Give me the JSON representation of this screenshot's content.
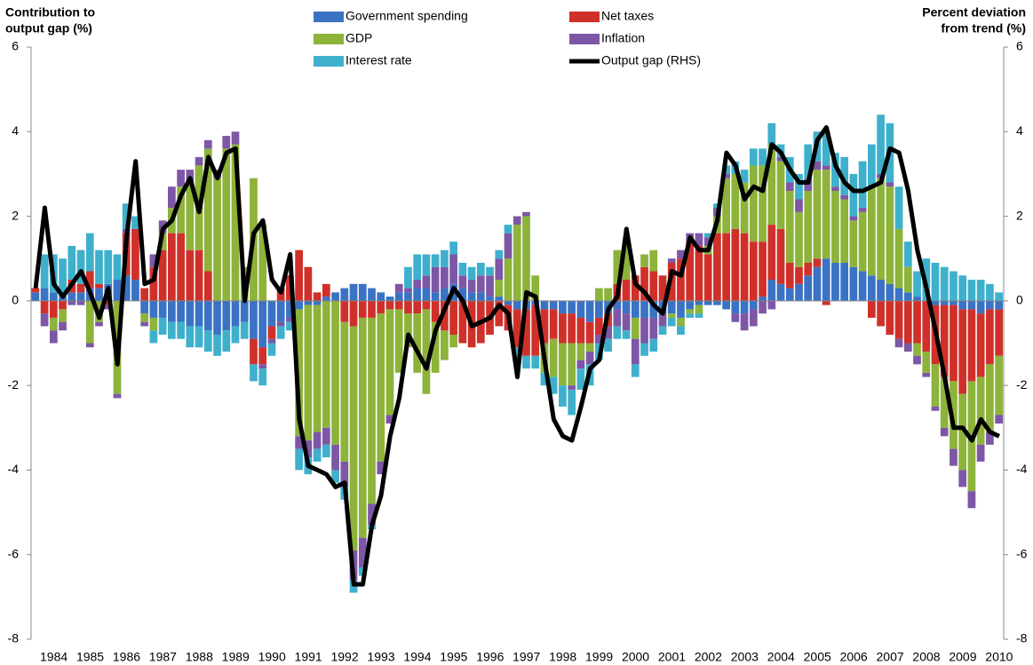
{
  "chart_data": {
    "type": "stacked-bar-line",
    "y_label": [
      "Contribution to",
      "output gap (%)"
    ],
    "y2_label": [
      "Percent deviation",
      "from trend (%)"
    ],
    "categories": [
      null,
      null,
      "1984",
      null,
      null,
      null,
      "1985",
      null,
      null,
      null,
      "1986",
      null,
      null,
      null,
      "1987",
      null,
      null,
      null,
      "1988",
      null,
      null,
      null,
      "1989",
      null,
      null,
      null,
      "1990",
      null,
      null,
      null,
      "1991",
      null,
      null,
      null,
      "1992",
      null,
      null,
      null,
      "1993",
      null,
      null,
      null,
      "1994",
      null,
      null,
      null,
      "1995",
      null,
      null,
      null,
      "1996",
      null,
      null,
      null,
      "1997",
      null,
      null,
      null,
      "1998",
      null,
      null,
      null,
      "1999",
      null,
      null,
      null,
      "2000",
      null,
      null,
      null,
      "2001",
      null,
      null,
      null,
      "2002",
      null,
      null,
      null,
      "2003",
      null,
      null,
      null,
      "2004",
      null,
      null,
      null,
      "2005",
      null,
      null,
      null,
      "2006",
      null,
      null,
      null,
      "2007",
      null,
      null,
      null,
      "2008",
      null,
      null,
      null,
      "2009",
      null,
      null,
      null,
      "2010"
    ],
    "ylim": [
      -8,
      6
    ],
    "yticks": [
      -8,
      -6,
      -4,
      -2,
      0,
      2,
      4,
      6
    ],
    "y2lim": [
      -8,
      6
    ],
    "y2ticks": [
      -8,
      -6,
      -4,
      -2,
      0,
      2,
      4,
      6
    ],
    "series": [
      {
        "name": "Government spending",
        "color": "#3a72c4",
        "values": [
          0.2,
          0.3,
          0.2,
          0.1,
          0.2,
          0.2,
          0.3,
          0.3,
          0.4,
          0.5,
          0.6,
          0.5,
          -0.3,
          -0.4,
          -0.4,
          -0.5,
          -0.5,
          -0.6,
          -0.6,
          -0.7,
          -0.8,
          -0.7,
          -0.6,
          -0.5,
          -0.9,
          -1.1,
          -0.6,
          -0.5,
          -0.4,
          -0.2,
          -0.1,
          -0.1,
          0.1,
          0.2,
          0.3,
          0.4,
          0.4,
          0.3,
          0.2,
          0.1,
          0.2,
          0.2,
          0.3,
          0.3,
          0.2,
          0.3,
          0.4,
          0.3,
          0.2,
          0.2,
          0.1,
          0.1,
          -0.1,
          -0.2,
          -0.2,
          -0.1,
          -0.2,
          -0.2,
          -0.3,
          -0.3,
          -0.4,
          -0.5,
          -0.4,
          -0.3,
          -0.2,
          -0.3,
          -0.4,
          -0.4,
          -0.4,
          -0.3,
          -0.3,
          -0.4,
          -0.2,
          -0.1,
          -0.1,
          -0.1,
          -0.2,
          -0.3,
          -0.3,
          -0.2,
          0.1,
          0.5,
          0.4,
          0.3,
          0.4,
          0.6,
          0.8,
          1.0,
          0.9,
          0.9,
          0.8,
          0.7,
          0.6,
          0.5,
          0.4,
          0.3,
          0.2,
          0.1,
          0.0,
          -0.1,
          -0.1,
          -0.1,
          -0.2,
          -0.2,
          -0.3,
          -0.2,
          -0.2
        ]
      },
      {
        "name": "Net taxes",
        "color": "#d0302a",
        "values": [
          0.1,
          -0.3,
          -0.4,
          -0.2,
          0.3,
          0.2,
          0.4,
          0.1,
          -0.1,
          0.0,
          1.0,
          1.2,
          0.3,
          0.8,
          1.2,
          1.6,
          1.6,
          1.2,
          1.2,
          0.7,
          0.0,
          0.0,
          0.0,
          0.0,
          -0.6,
          -0.4,
          -0.3,
          0.3,
          0.6,
          1.2,
          0.8,
          0.2,
          0.3,
          0.0,
          -0.5,
          -0.6,
          -0.4,
          -0.4,
          -0.3,
          -0.2,
          -0.2,
          -0.3,
          -0.3,
          -0.2,
          -0.5,
          -0.7,
          -0.8,
          -1.0,
          -1.1,
          -1.0,
          -0.8,
          -0.6,
          -0.6,
          -0.9,
          -1.1,
          -1.2,
          -0.8,
          -0.7,
          -0.7,
          -0.7,
          -0.6,
          -0.5,
          -0.4,
          -0.3,
          0.4,
          0.5,
          0.6,
          0.8,
          0.7,
          0.6,
          0.9,
          1.0,
          1.4,
          1.3,
          1.1,
          1.6,
          1.6,
          1.7,
          1.6,
          1.4,
          1.3,
          1.3,
          1.3,
          0.6,
          0.4,
          0.3,
          0.2,
          -0.1,
          0.0,
          0.0,
          0.0,
          0.0,
          -0.4,
          -0.6,
          -0.8,
          -0.9,
          -1.0,
          -1.0,
          -1.2,
          -1.4,
          -1.7,
          -1.8,
          -2.0,
          -1.7,
          -1.5,
          -1.3,
          -1.1
        ]
      },
      {
        "name": "GDP",
        "color": "#8db33a",
        "values": [
          0.0,
          0.0,
          -0.3,
          -0.3,
          0.0,
          0.0,
          -1.0,
          -0.5,
          0.0,
          -2.2,
          0.0,
          0.0,
          -0.2,
          -0.3,
          0.4,
          0.6,
          1.1,
          1.6,
          2.0,
          2.9,
          2.9,
          3.6,
          3.7,
          0.8,
          2.9,
          1.8,
          0.0,
          0.0,
          0.0,
          -3.0,
          -3.2,
          -3.0,
          -3.0,
          -3.4,
          -3.3,
          -5.3,
          -5.2,
          -4.4,
          -3.5,
          -2.5,
          -1.5,
          -0.8,
          -1.4,
          -2.0,
          -1.2,
          -0.7,
          -0.3,
          0.0,
          0.0,
          0.0,
          0.0,
          0.4,
          1.0,
          1.8,
          2.0,
          0.6,
          -0.7,
          -0.9,
          -1.0,
          -1.0,
          -0.4,
          -0.2,
          0.3,
          0.3,
          0.8,
          0.9,
          -0.5,
          0.3,
          0.5,
          0.0,
          -0.1,
          -0.2,
          -0.1,
          -0.2,
          0.2,
          0.4,
          1.3,
          1.3,
          1.2,
          1.8,
          1.8,
          1.9,
          1.6,
          1.7,
          1.3,
          1.7,
          2.1,
          2.1,
          1.7,
          1.5,
          1.1,
          1.4,
          2.1,
          2.4,
          2.3,
          1.4,
          0.6,
          -0.3,
          -0.5,
          -1.0,
          -1.2,
          -1.6,
          -1.8,
          -2.6,
          -1.6,
          -1.6,
          -1.4
        ]
      },
      {
        "name": "Inflation",
        "color": "#7d57a6",
        "values": [
          0.0,
          -0.3,
          -0.3,
          -0.2,
          -0.1,
          -0.1,
          -0.1,
          -0.1,
          -0.1,
          -0.1,
          0.1,
          0.0,
          -0.1,
          0.3,
          0.3,
          0.5,
          0.4,
          0.3,
          0.2,
          0.2,
          0.2,
          0.3,
          0.3,
          0.0,
          0.0,
          -0.1,
          -0.1,
          -0.1,
          -0.1,
          -0.3,
          -0.4,
          -0.4,
          -0.4,
          -0.6,
          -0.6,
          -0.7,
          -0.7,
          -0.5,
          -0.3,
          -0.2,
          0.2,
          0.1,
          0.2,
          0.3,
          0.6,
          0.5,
          0.7,
          0.3,
          0.3,
          0.4,
          0.5,
          0.5,
          0.6,
          0.2,
          0.1,
          0.0,
          0.0,
          0.0,
          0.0,
          -0.1,
          -0.2,
          -0.3,
          -0.2,
          -0.3,
          -0.4,
          -0.4,
          -0.6,
          -0.6,
          -0.5,
          -0.3,
          0.1,
          0.2,
          0.2,
          0.3,
          0.2,
          0.2,
          0.1,
          -0.2,
          -0.4,
          -0.4,
          -0.3,
          -0.2,
          0.1,
          0.2,
          0.3,
          0.3,
          0.2,
          0.1,
          0.1,
          0.1,
          0.1,
          0.1,
          0.0,
          0.1,
          0.1,
          -0.2,
          -0.2,
          -0.2,
          -0.1,
          -0.1,
          -0.2,
          -0.4,
          -0.4,
          -0.4,
          -0.4,
          -0.3,
          -0.2
        ]
      },
      {
        "name": "Interest rate",
        "color": "#3fb0cc",
        "values": [
          0.0,
          0.8,
          0.9,
          0.9,
          0.8,
          0.8,
          0.9,
          0.8,
          0.8,
          0.6,
          0.6,
          0.3,
          0.0,
          -0.3,
          -0.4,
          -0.4,
          -0.4,
          -0.5,
          -0.5,
          -0.5,
          -0.5,
          -0.5,
          -0.4,
          -0.4,
          -0.4,
          -0.4,
          -0.3,
          -0.3,
          -0.2,
          -0.5,
          -0.4,
          -0.3,
          -0.3,
          -0.3,
          -0.3,
          -0.3,
          -0.2,
          -0.1,
          0.0,
          0.0,
          0.0,
          0.5,
          0.6,
          0.5,
          0.3,
          0.4,
          0.3,
          0.3,
          0.3,
          0.3,
          0.2,
          0.2,
          0.2,
          -0.3,
          -0.3,
          -0.3,
          -0.3,
          -0.4,
          -0.5,
          -0.6,
          -0.5,
          -0.5,
          -0.4,
          -0.3,
          -0.3,
          -0.2,
          -0.3,
          -0.3,
          -0.3,
          -0.2,
          -0.2,
          -0.2,
          -0.1,
          -0.1,
          0.1,
          0.1,
          0.2,
          0.3,
          0.3,
          0.4,
          0.4,
          0.5,
          0.3,
          0.6,
          0.6,
          0.8,
          0.7,
          0.8,
          0.8,
          0.9,
          1.0,
          1.1,
          1.0,
          1.4,
          1.4,
          1.0,
          0.6,
          0.6,
          1.0,
          0.9,
          0.8,
          0.7,
          0.6,
          0.5,
          0.5,
          0.4,
          0.2
        ]
      },
      {
        "name": "Output gap (RHS)",
        "color": "#000000",
        "type": "line",
        "axis": "y2",
        "values": [
          0.3,
          2.2,
          0.4,
          0.1,
          0.4,
          0.7,
          0.2,
          -0.4,
          0.3,
          -1.5,
          1.5,
          3.3,
          0.4,
          0.5,
          1.7,
          1.9,
          2.5,
          2.9,
          2.1,
          3.4,
          2.9,
          3.5,
          3.6,
          0.0,
          1.6,
          1.9,
          0.5,
          0.2,
          1.1,
          -2.8,
          -3.9,
          -4.0,
          -4.1,
          -4.4,
          -4.3,
          -6.7,
          -6.7,
          -5.3,
          -4.6,
          -3.2,
          -2.3,
          -0.8,
          -1.2,
          -1.6,
          -0.7,
          -0.2,
          0.3,
          0.0,
          -0.6,
          -0.5,
          -0.4,
          -0.1,
          -0.3,
          -1.8,
          0.2,
          0.1,
          -1.4,
          -2.8,
          -3.2,
          -3.3,
          -2.5,
          -1.6,
          -1.4,
          -0.2,
          0.1,
          1.7,
          0.4,
          0.2,
          -0.1,
          -0.3,
          0.7,
          0.6,
          1.5,
          1.2,
          1.2,
          1.9,
          3.5,
          3.2,
          2.4,
          2.7,
          2.6,
          3.7,
          3.5,
          3.1,
          2.8,
          2.8,
          3.8,
          4.1,
          3.2,
          2.8,
          2.6,
          2.6,
          2.7,
          2.8,
          3.6,
          3.5,
          2.6,
          1.2,
          0.3,
          -0.7,
          -1.8,
          -3.0,
          -3.0,
          -3.3,
          -2.8,
          -3.1,
          -3.2
        ]
      }
    ]
  }
}
